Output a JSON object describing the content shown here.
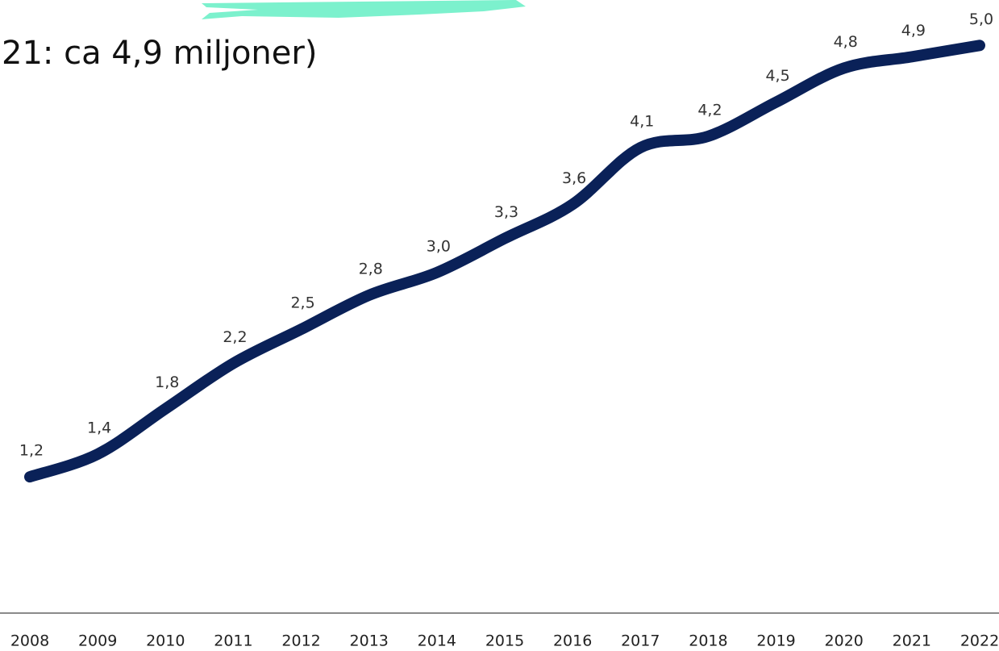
{
  "chart_data": {
    "type": "line",
    "title": "21: ca 4,9 miljoner)",
    "categories": [
      "2008",
      "2009",
      "2010",
      "2011",
      "2012",
      "2013",
      "2014",
      "2015",
      "2016",
      "2017",
      "2018",
      "2019",
      "2020",
      "2021",
      "2022"
    ],
    "values": [
      1.2,
      1.4,
      1.8,
      2.2,
      2.5,
      2.8,
      3.0,
      3.3,
      3.6,
      4.1,
      4.2,
      4.5,
      4.8,
      4.9,
      5.0
    ],
    "value_labels": [
      "1,2",
      "1,4",
      "1,8",
      "2,2",
      "2,5",
      "2,8",
      "3,0",
      "3,3",
      "3,6",
      "4,1",
      "4,2",
      "4,5",
      "4,8",
      "4,9",
      "5,0"
    ],
    "color": "#0a2158",
    "ylim": [
      0,
      5.4
    ]
  }
}
